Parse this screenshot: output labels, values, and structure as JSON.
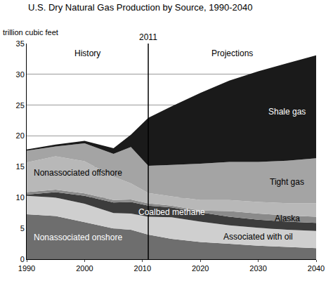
{
  "chart_data": {
    "type": "area",
    "stacked": true,
    "title": "U.S. Dry Natural Gas Production by Source, 1990-2040",
    "y_label": "trillion cubic feet",
    "annotations": [
      "History",
      "Projections"
    ],
    "divider": {
      "x": 2011,
      "label": "2011"
    },
    "x": [
      1990,
      1995,
      2000,
      2005,
      2008,
      2011,
      2015,
      2020,
      2025,
      2030,
      2035,
      2040
    ],
    "series": [
      {
        "name": "Nonassociated onshore",
        "color": "#6e6e6e",
        "values": [
          7.3,
          7.0,
          6.0,
          5.0,
          4.8,
          4.0,
          3.3,
          2.8,
          2.5,
          2.2,
          2.0,
          1.8
        ]
      },
      {
        "name": "Associated with oil",
        "color": "#cfcfcf",
        "values": [
          3.0,
          3.0,
          3.0,
          2.5,
          2.6,
          2.9,
          3.5,
          3.3,
          3.0,
          2.9,
          2.8,
          2.8
        ]
      },
      {
        "name": "Coalbed methane",
        "color": "#3c3c3c",
        "values": [
          0.2,
          0.9,
          1.3,
          1.7,
          1.9,
          1.8,
          1.6,
          1.5,
          1.4,
          1.3,
          1.3,
          1.3
        ]
      },
      {
        "name": "Alaska",
        "color": "#8a8a8a",
        "values": [
          0.4,
          0.4,
          0.4,
          0.4,
          0.4,
          0.35,
          0.3,
          0.3,
          0.9,
          1.0,
          1.0,
          1.0
        ]
      },
      {
        "name": "Nonassociated offshore",
        "color": "#b8b8b8",
        "values": [
          4.8,
          5.4,
          5.2,
          3.8,
          2.6,
          1.7,
          1.5,
          1.7,
          1.8,
          1.9,
          2.0,
          2.2
        ]
      },
      {
        "name": "Tight gas",
        "color": "#a4a4a4",
        "values": [
          1.9,
          1.6,
          2.9,
          3.7,
          5.9,
          4.4,
          5.1,
          5.9,
          6.2,
          6.5,
          6.9,
          7.3
        ]
      },
      {
        "name": "Shale gas",
        "color": "#1a1a1a",
        "values": [
          0.2,
          0.3,
          0.4,
          0.9,
          2.0,
          7.8,
          9.5,
          11.5,
          13.2,
          14.7,
          15.8,
          16.7
        ]
      }
    ],
    "xlim": [
      1990,
      2040
    ],
    "xticks": [
      1990,
      2000,
      2010,
      2020,
      2030,
      2040
    ],
    "ylim": [
      0,
      35
    ],
    "yticks": [
      0,
      5,
      10,
      15,
      20,
      25,
      30,
      35
    ],
    "grid": true
  }
}
